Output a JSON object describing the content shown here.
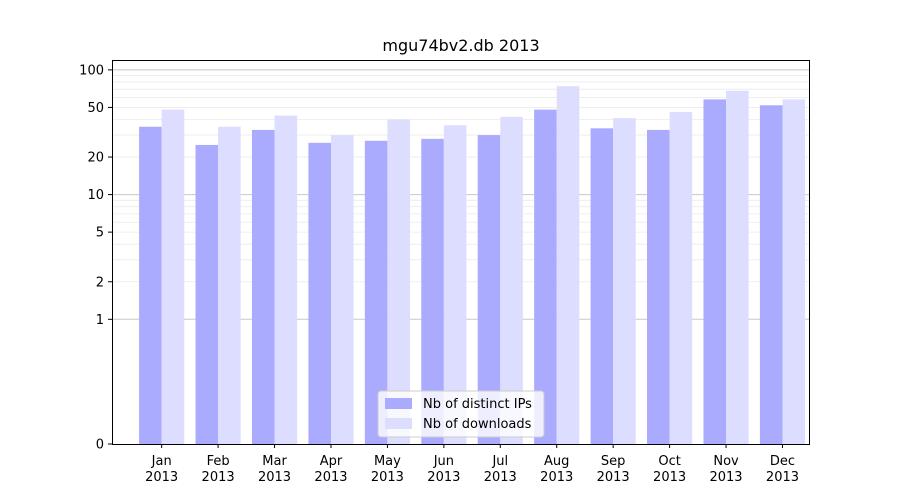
{
  "chart_data": {
    "type": "bar",
    "title": "mgu74bv2.db 2013",
    "xlabel": "",
    "ylabel": "",
    "yscale": "symlog",
    "ylim": [
      0,
      120
    ],
    "yticks": [
      0,
      1,
      2,
      5,
      10,
      20,
      50,
      100
    ],
    "categories": [
      [
        "Jan",
        "2013"
      ],
      [
        "Feb",
        "2013"
      ],
      [
        "Mar",
        "2013"
      ],
      [
        "Apr",
        "2013"
      ],
      [
        "May",
        "2013"
      ],
      [
        "Jun",
        "2013"
      ],
      [
        "Jul",
        "2013"
      ],
      [
        "Aug",
        "2013"
      ],
      [
        "Sep",
        "2013"
      ],
      [
        "Oct",
        "2013"
      ],
      [
        "Nov",
        "2013"
      ],
      [
        "Dec",
        "2013"
      ]
    ],
    "series": [
      {
        "name": "Nb of distinct IPs",
        "color": "#aaaaff",
        "values": [
          35,
          25,
          33,
          26,
          27,
          28,
          30,
          48,
          34,
          33,
          58,
          52
        ]
      },
      {
        "name": "Nb of downloads",
        "color": "#ddddff",
        "values": [
          48,
          35,
          43,
          30,
          40,
          36,
          42,
          74,
          41,
          46,
          68,
          58
        ]
      }
    ],
    "legend": "bottom-center",
    "grid": true
  }
}
